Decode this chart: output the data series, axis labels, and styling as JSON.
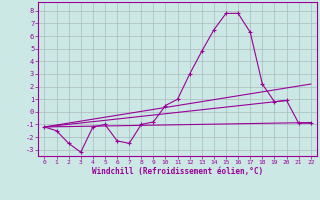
{
  "xlabel": "Windchill (Refroidissement éolien,°C)",
  "background_color": "#cce8e4",
  "grid_color": "#aabbbb",
  "line_color": "#990099",
  "xlim": [
    -0.5,
    22.5
  ],
  "ylim": [
    -3.5,
    8.7
  ],
  "xticks": [
    0,
    1,
    2,
    3,
    4,
    5,
    6,
    7,
    8,
    9,
    10,
    11,
    12,
    13,
    14,
    15,
    16,
    17,
    18,
    19,
    20,
    21,
    22
  ],
  "yticks": [
    -3,
    -2,
    -1,
    0,
    1,
    2,
    3,
    4,
    5,
    6,
    7,
    8
  ],
  "line1_x": [
    0,
    1,
    2,
    3,
    4,
    5,
    6,
    7,
    8,
    9,
    10,
    11,
    12,
    13,
    14,
    15,
    16,
    17,
    18,
    19,
    20,
    21,
    22
  ],
  "line1_y": [
    -1.2,
    -1.5,
    -2.5,
    -3.2,
    -1.2,
    -1.0,
    -2.3,
    -2.5,
    -1.0,
    -0.8,
    0.5,
    1.0,
    3.0,
    4.8,
    6.5,
    7.8,
    7.8,
    6.3,
    2.2,
    0.8,
    0.9,
    -0.9,
    -0.9
  ],
  "line2_x": [
    0,
    22
  ],
  "line2_y": [
    -1.2,
    -0.85
  ],
  "line3_x": [
    0,
    20
  ],
  "line3_y": [
    -1.2,
    0.9
  ],
  "line4_x": [
    0,
    22
  ],
  "line4_y": [
    -1.2,
    2.2
  ]
}
